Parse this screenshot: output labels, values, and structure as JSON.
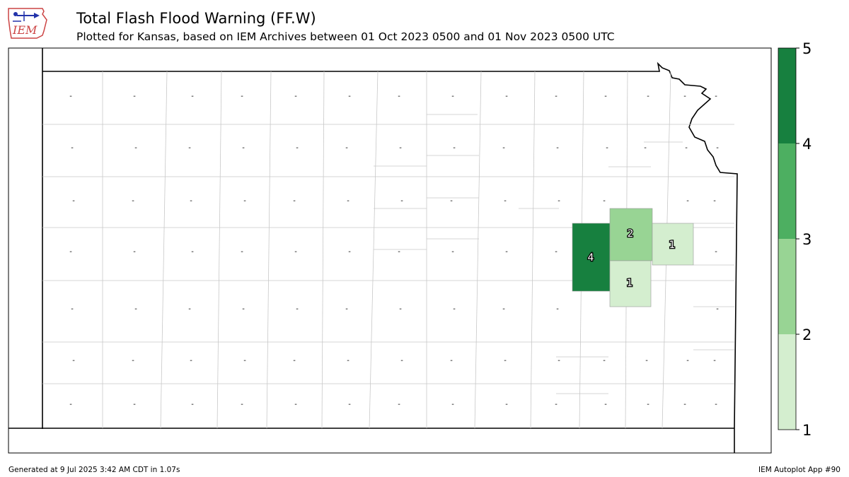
{
  "header": {
    "title": "Total Flash Flood Warning (FF.W)",
    "subtitle": "Plotted for Kansas, based on IEM Archives  between 01 Oct 2023 0500 and 01 Nov 2023 0500 UTC"
  },
  "logo": {
    "text": "IEM",
    "icon": "iowa-state-outline-weather-logo"
  },
  "footer": {
    "generated": "Generated at 9 Jul 2025 3:42 AM CDT in 1.07s",
    "app": "IEM Autoplot App #90"
  },
  "legend": {
    "ticks": [
      "1",
      "2",
      "3",
      "4",
      "5"
    ],
    "bins": [
      {
        "from": 1,
        "to": 2,
        "color": "#d4eecf"
      },
      {
        "from": 2,
        "to": 3,
        "color": "#98d494"
      },
      {
        "from": 3,
        "to": 4,
        "color": "#4daf61"
      },
      {
        "from": 4,
        "to": 5,
        "color": "#17803f"
      }
    ]
  },
  "counties": {
    "no_data_label": "-",
    "values": [
      {
        "value": 4,
        "label": "4",
        "color": "#17803f"
      },
      {
        "value": 2,
        "label": "2",
        "color": "#98d494"
      },
      {
        "value": 1,
        "label": "1",
        "color": "#d4eecf"
      },
      {
        "value": 1,
        "label": "1",
        "color": "#d4eecf"
      }
    ]
  }
}
